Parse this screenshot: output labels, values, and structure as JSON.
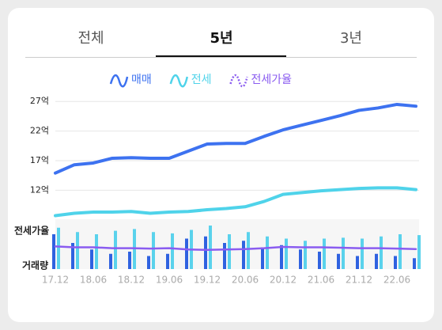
{
  "tabs": [
    "전체",
    "5년",
    "3년"
  ],
  "chart_data": {
    "type": "line",
    "categories": [
      "17.12",
      null,
      "18.06",
      null,
      "18.12",
      null,
      "19.06",
      null,
      "19.12",
      null,
      "20.06",
      null,
      "20.12",
      null,
      "21.06",
      null,
      "21.12",
      null,
      "22.06",
      null
    ],
    "series": [
      {
        "name": "매매",
        "color": "#3d72f0",
        "values": [
          14.9,
          16.3,
          16.6,
          17.4,
          17.5,
          17.4,
          17.4,
          18.6,
          19.8,
          19.9,
          19.9,
          21.1,
          22.2,
          23.0,
          23.8,
          24.6,
          25.5,
          25.9,
          26.5,
          26.2
        ]
      },
      {
        "name": "전세",
        "color": "#4fd3ea",
        "values": [
          7.7,
          8.1,
          8.3,
          8.3,
          8.4,
          8.1,
          8.3,
          8.4,
          8.7,
          8.9,
          9.2,
          10.1,
          11.3,
          11.6,
          11.9,
          12.1,
          12.3,
          12.4,
          12.4,
          12.1
        ]
      },
      {
        "name": "전세가율",
        "color": "#8a5cf0",
        "axis": "y2",
        "values": [
          52,
          50,
          50,
          48,
          48,
          47,
          48,
          45,
          44,
          45,
          46,
          48,
          51,
          50,
          50,
          49,
          48,
          48,
          47,
          46
        ]
      }
    ],
    "ylim": [
      7.5,
      28.5
    ],
    "yticks": [
      {
        "value": 12,
        "label": "12억"
      },
      {
        "value": 17,
        "label": "17억"
      },
      {
        "value": 22,
        "label": "22억"
      },
      {
        "value": 27,
        "label": "27억"
      }
    ],
    "y2lim": [
      0,
      100
    ],
    "panel_labels": [
      "전세가율",
      "거래량"
    ],
    "volume": [
      {
        "color": "#2f62e0",
        "values": [
          80,
          60,
          45,
          35,
          40,
          30,
          35,
          70,
          75,
          60,
          65,
          50,
          55,
          45,
          40,
          35,
          30,
          35,
          30,
          25
        ]
      },
      {
        "color": "#5ad2ec",
        "values": [
          95,
          85,
          80,
          88,
          92,
          85,
          82,
          90,
          100,
          80,
          85,
          75,
          70,
          65,
          70,
          72,
          70,
          75,
          80,
          78
        ]
      }
    ],
    "volume_lim": [
      0,
      100
    ],
    "grid": true
  }
}
